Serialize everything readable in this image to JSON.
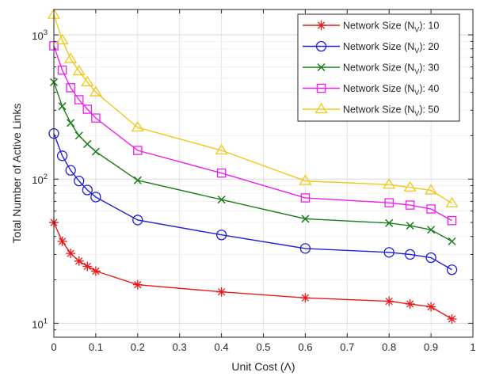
{
  "chart_data": {
    "type": "line",
    "xlabel": "Unit Cost (Λ)",
    "ylabel": "Total Number of Active Links",
    "x_scale": "linear",
    "y_scale": "log",
    "xlim": [
      0,
      1
    ],
    "ylim": [
      8,
      1500
    ],
    "grid": true,
    "legend_position": "top-right",
    "x_ticks": [
      0,
      0.1,
      0.2,
      0.3,
      0.4,
      0.5,
      0.6,
      0.7,
      0.8,
      0.9,
      1
    ],
    "x_tick_labels": [
      "0",
      "0.1",
      "0.2",
      "0.3",
      "0.4",
      "0.5",
      "0.6",
      "0.7",
      "0.8",
      "0.9",
      "1"
    ],
    "y_ticks": [
      10,
      100,
      1000
    ],
    "y_tick_labels": [
      {
        "base": "10",
        "exp": "1"
      },
      {
        "base": "10",
        "exp": "2"
      },
      {
        "base": "10",
        "exp": "3"
      }
    ],
    "x": [
      0,
      0.02,
      0.04,
      0.06,
      0.08,
      0.1,
      0.2,
      0.4,
      0.6,
      0.8,
      0.85,
      0.9,
      0.95
    ],
    "series": [
      {
        "name_prefix": "Network Size (N",
        "name_sub": "V",
        "name_suffix": "): 10",
        "color": "#e8191b",
        "marker": "asterisk",
        "values": [
          50,
          37,
          30.5,
          27,
          24.8,
          23,
          18.5,
          16.5,
          15,
          14.2,
          13.6,
          13,
          10.7
        ]
      },
      {
        "name_prefix": "Network Size (N",
        "name_sub": "V",
        "name_suffix": "): 20",
        "color": "#1f1fd6",
        "marker": "circle",
        "values": [
          207,
          145,
          115,
          97,
          84,
          75,
          52,
          41,
          33,
          31,
          30,
          28.5,
          23.5
        ]
      },
      {
        "name_prefix": "Network Size (N",
        "name_sub": "V",
        "name_suffix": "): 30",
        "color": "#1b7d1b",
        "marker": "x",
        "values": [
          470,
          320,
          245,
          200,
          175,
          155,
          98,
          72,
          53,
          49.5,
          47.5,
          44.5,
          37
        ]
      },
      {
        "name_prefix": "Network Size (N",
        "name_sub": "V",
        "name_suffix": "): 40",
        "color": "#ee1fee",
        "marker": "square",
        "values": [
          840,
          570,
          430,
          355,
          305,
          265,
          158,
          110,
          74,
          68.5,
          66,
          62,
          51.5
        ]
      },
      {
        "name_prefix": "Network Size (N",
        "name_sub": "V",
        "name_suffix": "): 50",
        "color": "#f0c81a",
        "marker": "triangle",
        "values": [
          1380,
          920,
          680,
          560,
          470,
          400,
          228,
          158,
          97,
          91.5,
          87.5,
          83.5,
          68
        ]
      }
    ]
  }
}
